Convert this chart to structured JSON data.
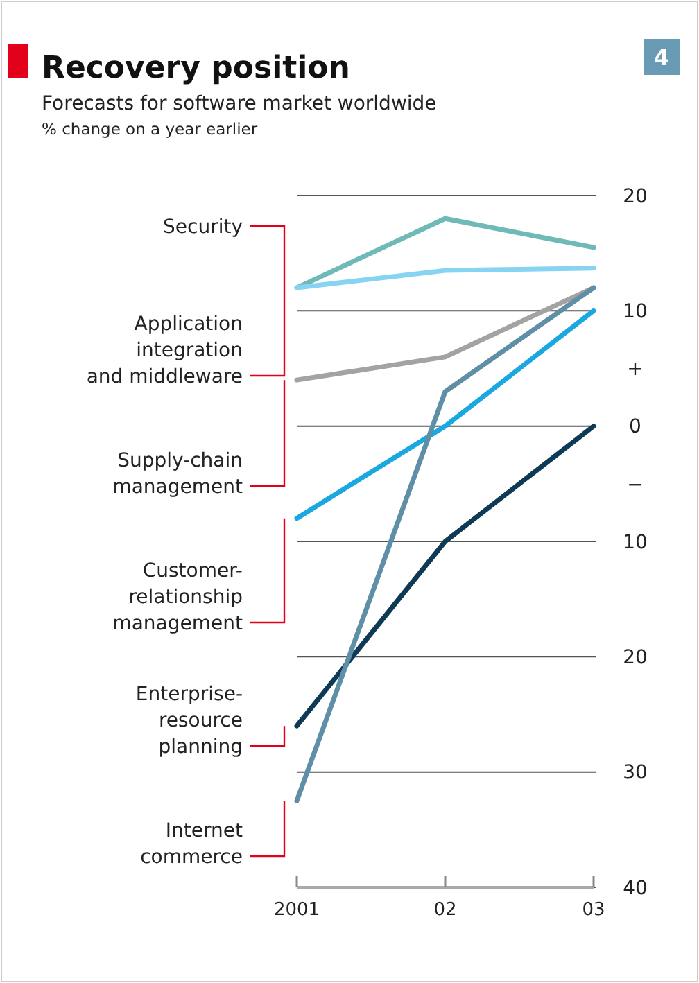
{
  "chart_data": {
    "type": "line",
    "title": "Recovery position",
    "subtitle": "Forecasts for software market worldwide",
    "ylabel": "% change on a year earlier",
    "categories": [
      "2001",
      "02",
      "03"
    ],
    "series": [
      {
        "name": "Security",
        "color": "#6fb9b9",
        "values": [
          12,
          18,
          15.5
        ]
      },
      {
        "name": "Application integration and middleware",
        "color": "#86d4f2",
        "values": [
          12,
          13.5,
          13.7
        ]
      },
      {
        "name": "Supply-chain management",
        "color": "#a3a3a3",
        "values": [
          4,
          6,
          12
        ]
      },
      {
        "name": "Customer-relationship management",
        "color": "#1ba7e0",
        "values": [
          -8,
          0,
          10
        ]
      },
      {
        "name": "Enterprise-resource planning",
        "color": "#0f3a55",
        "values": [
          -26,
          -10,
          0
        ]
      },
      {
        "name": "Internet commerce",
        "color": "#5f8fa7",
        "values": [
          -32.5,
          3,
          12
        ]
      }
    ],
    "ylim": [
      -40,
      20
    ],
    "yticks": [
      20,
      10,
      0,
      {
        "value": -10,
        "label": "10"
      },
      {
        "value": -20,
        "label": "20"
      },
      {
        "value": -30,
        "label": "30"
      },
      {
        "value": -40,
        "label": "40"
      }
    ],
    "grid": "y",
    "legend": false,
    "marker": "none",
    "line_style": "solid",
    "annotations": [
      "+",
      "−",
      "4"
    ]
  }
}
